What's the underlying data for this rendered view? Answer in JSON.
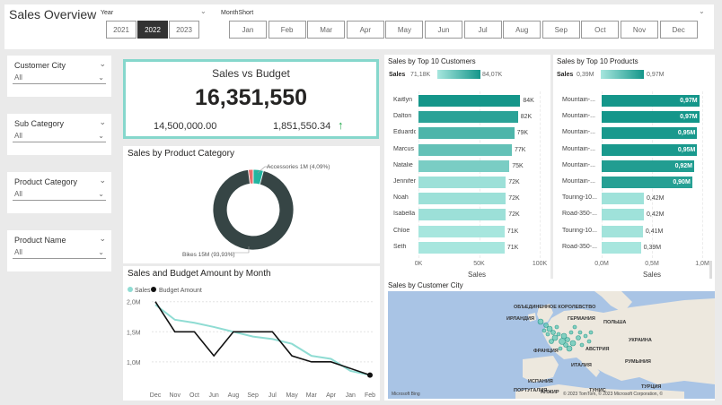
{
  "header": {
    "title": "Sales Overview",
    "year_label": "Year",
    "years": [
      "2021",
      "2022",
      "2023"
    ],
    "year_selected": "2022",
    "month_label": "MonthShort",
    "months": [
      "Jan",
      "Feb",
      "Mar",
      "Apr",
      "May",
      "Jun",
      "Jul",
      "Aug",
      "Sep",
      "Oct",
      "Nov",
      "Dec"
    ]
  },
  "slicers": [
    {
      "title": "Customer City",
      "value": "All"
    },
    {
      "title": "Sub Category",
      "value": "All"
    },
    {
      "title": "Product Category",
      "value": "All"
    },
    {
      "title": "Product Name",
      "value": "All"
    }
  ],
  "kpi": {
    "title": "Sales vs Budget",
    "value": "16,351,550",
    "budget": "14,500,000.00",
    "variance": "1,851,550.34",
    "variance_icon": "arrow-up-icon",
    "accent": "#86d7cc"
  },
  "product_category": {
    "title": "Sales by Product Category",
    "label_accessories": "Accessories 1M (4,09%)",
    "label_bikes": "Bikes 15M (93,93%)",
    "chart_data": {
      "type": "pie",
      "donut": true,
      "slices": [
        {
          "name": "Bikes",
          "value": 93.93,
          "label": "Bikes 15M (93,93%)",
          "color": "#364545"
        },
        {
          "name": "Accessories",
          "value": 4.09,
          "label": "Accessories 1M (4,09%)",
          "color": "#22b5a0"
        },
        {
          "name": "Other",
          "value": 1.98,
          "color": "#e76d6d"
        }
      ]
    }
  },
  "sales_budget_month": {
    "title": "Sales and Budget Amount by Month",
    "legend": [
      "Sales",
      "Budget Amount"
    ],
    "chart_data": {
      "type": "line",
      "categories": [
        "Dec",
        "Nov",
        "Oct",
        "Jun",
        "Aug",
        "Sep",
        "Jul",
        "May",
        "Mar",
        "Apr",
        "Jan",
        "Feb"
      ],
      "series": [
        {
          "name": "Sales",
          "color": "#8fdcd3",
          "values": [
            1.95,
            1.7,
            1.65,
            1.58,
            1.5,
            1.42,
            1.38,
            1.3,
            1.1,
            1.05,
            0.85,
            0.78
          ]
        },
        {
          "name": "Budget Amount",
          "color": "#111111",
          "values": [
            2.0,
            1.5,
            1.5,
            1.1,
            1.5,
            1.5,
            1.5,
            1.1,
            1.0,
            1.0,
            null,
            0.78
          ]
        }
      ],
      "y_ticks": [
        "2,0M",
        "1,5M",
        "1,0M"
      ],
      "ylim": [
        0.7,
        2.1
      ],
      "legend_position": "top-left"
    }
  },
  "top_customers": {
    "title": "Sales by Top 10 Customers",
    "legend_label": "Sales",
    "legend_min": "71,18K",
    "legend_max": "84,07K",
    "xlabel": "Sales",
    "chart_data": {
      "type": "bar",
      "orientation": "horizontal",
      "categories": [
        "Kaitlyn",
        "Dalton",
        "Eduardo",
        "Marcus",
        "Natalie",
        "Jennifer",
        "Noah",
        "Isabella",
        "Chloe",
        "Seth"
      ],
      "values": [
        84,
        82,
        79,
        77,
        75,
        72,
        72,
        72,
        71,
        71
      ],
      "value_labels": [
        "84K",
        "82K",
        "79K",
        "77K",
        "75K",
        "72K",
        "72K",
        "72K",
        "71K",
        "71K"
      ],
      "x_ticks": [
        "0K",
        "50K",
        "100K"
      ],
      "xlim": [
        0,
        100
      ],
      "color_low": "#a7e6de",
      "color_high": "#14968a"
    }
  },
  "top_products": {
    "title": "Sales by Top 10 Products",
    "legend_label": "Sales",
    "legend_min": "0,39M",
    "legend_max": "0,97M",
    "xlabel": "Sales",
    "chart_data": {
      "type": "bar",
      "orientation": "horizontal",
      "categories": [
        "Mountain-...",
        "Mountain-...",
        "Mountain-...",
        "Mountain-...",
        "Mountain-...",
        "Mountain-...",
        "Touring-10...",
        "Road-350-...",
        "Touring-10...",
        "Road-350-..."
      ],
      "values": [
        0.97,
        0.97,
        0.95,
        0.95,
        0.92,
        0.9,
        0.42,
        0.42,
        0.41,
        0.39
      ],
      "value_labels": [
        "0,97M",
        "0,97M",
        "0,95M",
        "0,95M",
        "0,92M",
        "0,90M",
        "0,42M",
        "0,42M",
        "0,41M",
        "0,39M"
      ],
      "x_ticks": [
        "0,0M",
        "0,5M",
        "1,0M"
      ],
      "xlim": [
        0,
        1.0
      ],
      "color_low": "#a7e6de",
      "color_high": "#14968a"
    }
  },
  "map": {
    "title": "Sales by Customer City",
    "labels": [
      "ОБЪЕДИНЕННОЕ КОРОЛЕВСТВО",
      "ИРЛАНДИЯ",
      "ГЕРМАНИЯ",
      "ФРАНЦИЯ",
      "ИТАЛИЯ",
      "ИСПАНИЯ",
      "ПОРТУГАЛИЯ",
      "АЛЖИР",
      "ТУНИС",
      "ПОЛЬША",
      "УКРАИНА",
      "РУМЫНИЯ",
      "ТУРЦИЯ",
      "АВСТРИЯ"
    ],
    "attribution_left": "Microsoft Bing",
    "attribution_right": "© 2023 TomTom, © 2023 Microsoft Corporation, ©"
  }
}
